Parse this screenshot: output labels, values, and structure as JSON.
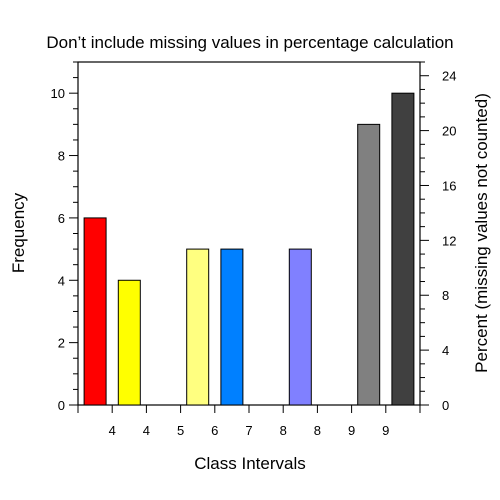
{
  "chart_data": {
    "type": "bar",
    "title": "Don’t include missing values in percentage calculation",
    "xlabel": "Class Intervals",
    "ylabel": "Frequency",
    "y2label": "Percent (missing values not counted)",
    "ylim": [
      0,
      11
    ],
    "y2lim": [
      0,
      25
    ],
    "yticks": [
      "0",
      "2",
      "4",
      "6",
      "8",
      "10"
    ],
    "y2ticks": [
      "0",
      "4",
      "8",
      "12",
      "16",
      "20",
      "24"
    ],
    "xticks": [
      "4",
      "4",
      "5",
      "6",
      "7",
      "8",
      "8",
      "9",
      "9"
    ],
    "grid": false,
    "legend": "none",
    "bars": [
      {
        "value": 6,
        "color": "#ff0000"
      },
      {
        "value": 4,
        "color": "#ffff00"
      },
      {
        "value": 0,
        "color": "#ffff00"
      },
      {
        "value": 5,
        "color": "#ffff80"
      },
      {
        "value": 5,
        "color": "#0080ff"
      },
      {
        "value": 0,
        "color": "#0080ff"
      },
      {
        "value": 5,
        "color": "#8080ff"
      },
      {
        "value": 0,
        "color": "#8080ff"
      },
      {
        "value": 9,
        "color": "#808080"
      },
      {
        "value": 10,
        "color": "#404040"
      }
    ]
  }
}
